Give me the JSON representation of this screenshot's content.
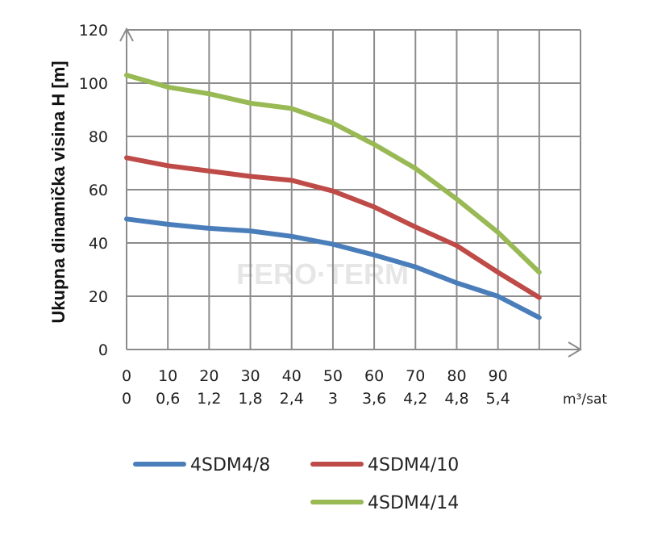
{
  "chart_data": {
    "type": "line",
    "title": "",
    "ylabel": "Ukupna dinamička  visina H [m]",
    "xlabel_unit": "m³/sat",
    "ylim": [
      0,
      120
    ],
    "yticks": [
      0,
      20,
      40,
      60,
      80,
      100,
      120
    ],
    "x_ticks_primary": [
      "0",
      "10",
      "20",
      "30",
      "40",
      "50",
      "60",
      "70",
      "80",
      "90"
    ],
    "x_ticks_secondary": [
      "0",
      "0,6",
      "1,2",
      "1,8",
      "2,4",
      "3",
      "3,6",
      "4,2",
      "4,8",
      "5,4"
    ],
    "x": [
      0,
      10,
      20,
      30,
      40,
      50,
      60,
      70,
      80,
      90,
      100
    ],
    "grid": true,
    "legend_position": "bottom",
    "series": [
      {
        "name": "4SDM4/8",
        "color": "#4a7ebb",
        "values": [
          49,
          47,
          45.5,
          44.5,
          42.5,
          39.5,
          35.5,
          31,
          25,
          20,
          12
        ]
      },
      {
        "name": "4SDM4/10",
        "color": "#be4b48",
        "values": [
          72,
          69,
          67,
          65,
          63.5,
          59.5,
          53.5,
          46,
          39,
          29,
          19.5
        ]
      },
      {
        "name": "4SDM4/14",
        "color": "#98b954",
        "values": [
          103,
          98.5,
          96,
          92.5,
          90.5,
          85,
          77,
          68,
          56.5,
          44,
          29
        ]
      }
    ]
  },
  "watermark": "FERO·TERM"
}
